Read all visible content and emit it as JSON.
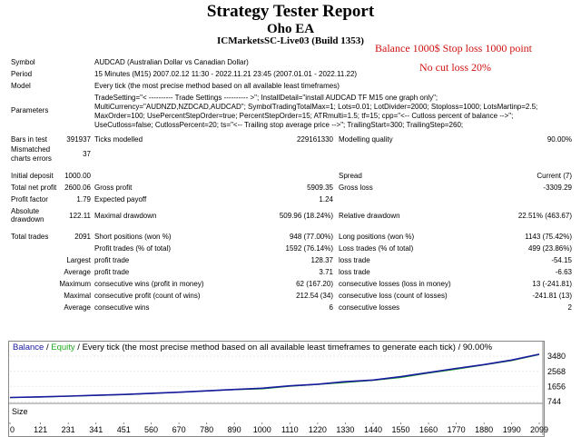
{
  "report": {
    "title": "Strategy Tester Report",
    "ea_name": "Oho EA",
    "server": "ICMarketsSC-Live03 (Build 1353)"
  },
  "annotations": {
    "line1": "Balance 1000$ Stop loss 1000 point",
    "line2": "No cut loss 20%"
  },
  "settings": {
    "symbol_label": "Symbol",
    "symbol_value": "AUDCAD (Australian Dollar vs Canadian Dollar)",
    "period_label": "Period",
    "period_value": "15 Minutes (M15) 2007.02.12 11:30 - 2022.11.21 23:45 (2007.01.01 - 2022.11.22)",
    "model_label": "Model",
    "model_value": "Every tick (the most precise method based on all available least timeframes)",
    "parameters_label": "Parameters",
    "parameters_lines": [
      "TradeSetting=\"< ---------- Trade Settings ---------- >\"; InstallDetail=\"install AUDCAD TF M15 one graph only\";",
      "MultiCurrency=\"AUDNZD,NZDCAD,AUDCAD\"; SymbolTradingTotalMax=1; Lots=0.01; LotDivider=2000; Stoploss=1000; LotsMartinp=2.5;",
      "MaxOrder=100; UsePercentStepOrder=true; PercentStepOrder=15; ATRmulti=1.5; tf=15; cpp=\"<-- Cutloss percent of balance -->\";",
      "UseCutloss=false; CutlossPercent=20; ts=\"<-- Trailing stop average price -->\"; TrailingStart=300; TrailingStep=260;"
    ]
  },
  "stats": {
    "bars_label": "Bars in test",
    "bars_value": "391937",
    "ticks_label": "Ticks modelled",
    "ticks_value": "229161330",
    "quality_label": "Modelling quality",
    "quality_value": "90.00%",
    "mismatch_label_1": "Mismatched",
    "mismatch_label_2": "charts errors",
    "mismatch_value": "37",
    "deposit_label": "Initial deposit",
    "deposit_value": "1000.00",
    "spread_label": "Spread",
    "spread_value": "Current (7)",
    "net_label": "Total net profit",
    "net_value": "2600.06",
    "gross_profit_label": "Gross profit",
    "gross_profit_value": "5909.35",
    "gross_loss_label": "Gross loss",
    "gross_loss_value": "-3309.29",
    "pf_label": "Profit factor",
    "pf_value": "1.79",
    "payoff_label": "Expected payoff",
    "payoff_value": "1.24",
    "abs_dd_label_1": "Absolute",
    "abs_dd_label_2": "drawdown",
    "abs_dd_value": "122.11",
    "max_dd_label": "Maximal drawdown",
    "max_dd_value": "509.96 (18.24%)",
    "rel_dd_label": "Relative drawdown",
    "rel_dd_value": "22.51% (463.67)",
    "trades_label": "Total trades",
    "trades_value": "2091",
    "short_label": "Short positions (won %)",
    "short_value": "948 (77.00%)",
    "long_label": "Long positions (won %)",
    "long_value": "1143 (75.42%)",
    "profit_trades_label": "Profit trades (% of total)",
    "profit_trades_value": "1592 (76.14%)",
    "loss_trades_label": "Loss trades (% of total)",
    "loss_trades_value": "499 (23.86%)",
    "largest_label": "Largest",
    "largest_profit_label": "profit trade",
    "largest_profit_value": "128.37",
    "largest_loss_label": "loss trade",
    "largest_loss_value": "-54.15",
    "average_label": "Average",
    "average_profit_label": "profit trade",
    "average_profit_value": "3.71",
    "average_loss_label": "loss trade",
    "average_loss_value": "-6.63",
    "maximum_label": "Maximum",
    "max_wins_label": "consecutive wins (profit in money)",
    "max_wins_value": "62 (167.20)",
    "max_losses_label": "consecutive losses (loss in money)",
    "max_losses_value": "13 (-241.81)",
    "maximal_label": "Maximal",
    "maximal_profit_label": "consecutive profit (count of wins)",
    "maximal_profit_value": "212.54 (34)",
    "maximal_loss_label": "consecutive loss (count of losses)",
    "maximal_loss_value": "-241.81 (13)",
    "avg_cons_label": "Average",
    "avg_wins_label": "consecutive wins",
    "avg_wins_value": "6",
    "avg_losses_label": "consecutive losses",
    "avg_losses_value": "2"
  },
  "graph": {
    "legend_balance": "Balance",
    "legend_sep1": " / ",
    "legend_equity": "Equity",
    "legend_rest": " / Every tick (the most precise method based on all available least timeframes to generate each tick) / 90.00%",
    "size_label": "Size",
    "y_ticks": [
      "3480",
      "2568",
      "1656",
      "744"
    ],
    "x_ticks": [
      "0",
      "121",
      "231",
      "341",
      "451",
      "560",
      "670",
      "780",
      "890",
      "1000",
      "1110",
      "1220",
      "1330",
      "1440",
      "1550",
      "1660",
      "1770",
      "1880",
      "1990",
      "2099"
    ],
    "balance_color": "#1a1aa0",
    "equity_color": "#22aa22"
  },
  "chart_data": {
    "type": "line",
    "x_label": "",
    "y_label": "",
    "ylim": [
      744,
      3480
    ],
    "x_range": [
      0,
      2099
    ],
    "series": [
      {
        "name": "Balance",
        "color": "#1a1aa0",
        "x": [
          0,
          121,
          231,
          341,
          451,
          560,
          670,
          780,
          890,
          1000,
          1110,
          1220,
          1330,
          1440,
          1550,
          1660,
          1770,
          1880,
          1990,
          2099
        ],
        "y": [
          1000,
          1040,
          1080,
          1130,
          1180,
          1250,
          1320,
          1400,
          1480,
          1560,
          1700,
          1800,
          1950,
          2050,
          2250,
          2500,
          2750,
          2980,
          3250,
          3600
        ]
      },
      {
        "name": "Equity",
        "color": "#22aa22",
        "x": [
          0,
          121,
          231,
          341,
          451,
          560,
          670,
          780,
          890,
          1000,
          1110,
          1220,
          1330,
          1440,
          1550,
          1660,
          1770,
          1880,
          1990,
          2099
        ],
        "y": [
          990,
          1030,
          1070,
          1120,
          1170,
          1240,
          1310,
          1390,
          1470,
          1520,
          1680,
          1780,
          1900,
          2030,
          2200,
          2470,
          2700,
          2960,
          3220,
          3580
        ]
      }
    ]
  }
}
